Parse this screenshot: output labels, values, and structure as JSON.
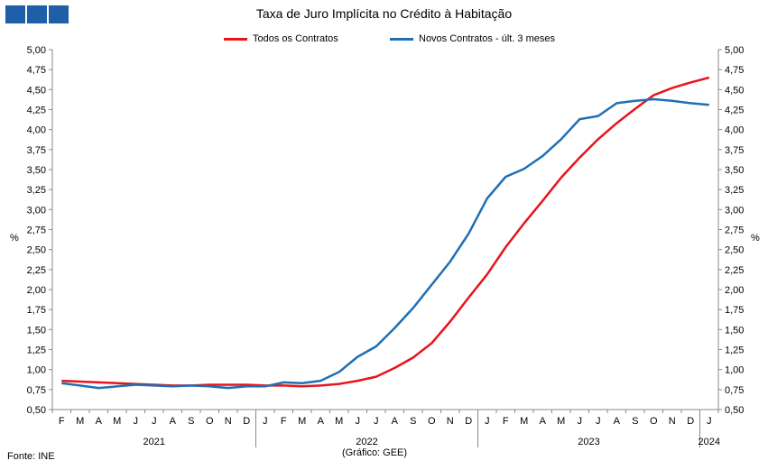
{
  "title": "Taxa de Juro Implícita  no Crédito à Habitação",
  "source": "Fonte: INE",
  "note": "(Gráfico: GEE)",
  "chart_data": {
    "type": "line",
    "ylabel": "%",
    "ylim": [
      0.5,
      5.0
    ],
    "ytick_step": 0.25,
    "grid": false,
    "legend_position": "top-center",
    "x": [
      "2021-02",
      "2021-03",
      "2021-04",
      "2021-05",
      "2021-06",
      "2021-07",
      "2021-08",
      "2021-09",
      "2021-10",
      "2021-11",
      "2021-12",
      "2022-01",
      "2022-02",
      "2022-03",
      "2022-04",
      "2022-05",
      "2022-06",
      "2022-07",
      "2022-08",
      "2022-09",
      "2022-10",
      "2022-11",
      "2022-12",
      "2023-01",
      "2023-02",
      "2023-03",
      "2023-04",
      "2023-05",
      "2023-06",
      "2023-07",
      "2023-08",
      "2023-09",
      "2023-10",
      "2023-11",
      "2023-12",
      "2024-01"
    ],
    "month_labels": [
      "F",
      "M",
      "A",
      "M",
      "J",
      "J",
      "A",
      "S",
      "O",
      "N",
      "D",
      "J",
      "F",
      "M",
      "A",
      "M",
      "J",
      "J",
      "A",
      "S",
      "O",
      "N",
      "D",
      "J",
      "F",
      "M",
      "A",
      "M",
      "J",
      "J",
      "A",
      "S",
      "O",
      "N",
      "D",
      "J"
    ],
    "years": [
      {
        "label": "2021",
        "start": 0,
        "end": 10
      },
      {
        "label": "2022",
        "start": 11,
        "end": 22
      },
      {
        "label": "2023",
        "start": 23,
        "end": 34
      },
      {
        "label": "2024",
        "start": 35,
        "end": 35
      }
    ],
    "series": [
      {
        "name": "Todos os Contratos",
        "color": "#e8141b",
        "values": [
          0.86,
          0.85,
          0.84,
          0.83,
          0.82,
          0.81,
          0.8,
          0.8,
          0.81,
          0.81,
          0.81,
          0.8,
          0.8,
          0.79,
          0.8,
          0.82,
          0.86,
          0.91,
          1.02,
          1.15,
          1.33,
          1.6,
          1.9,
          2.19,
          2.53,
          2.83,
          3.11,
          3.4,
          3.65,
          3.88,
          4.08,
          4.26,
          4.43,
          4.52,
          4.59,
          4.65
        ]
      },
      {
        "name": "Novos Contratos - últ. 3 meses",
        "color": "#1f6fb5",
        "values": [
          0.83,
          0.8,
          0.77,
          0.79,
          0.81,
          0.8,
          0.79,
          0.8,
          0.79,
          0.77,
          0.79,
          0.79,
          0.84,
          0.83,
          0.86,
          0.97,
          1.16,
          1.29,
          1.52,
          1.77,
          2.06,
          2.35,
          2.7,
          3.14,
          3.41,
          3.51,
          3.67,
          3.88,
          4.13,
          4.17,
          4.33,
          4.36,
          4.38,
          4.36,
          4.33,
          4.31
        ]
      }
    ]
  }
}
